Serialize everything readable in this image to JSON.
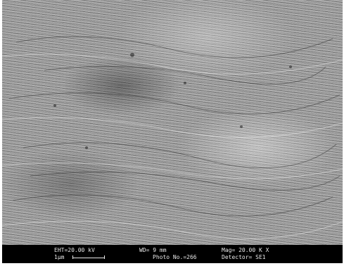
{
  "image": {
    "description_name": "sem-micrograph"
  },
  "databar": {
    "eht": "EHT=20.00 kV",
    "scale_label": "1μm",
    "wd": "WD=   9 mm",
    "photo_no": "Photo No.=266",
    "mag": "Mag= 20.00 K X",
    "detector": "Detector= SE1"
  },
  "colors": {
    "databar_bg": "#000000",
    "databar_text": "#e8e8e8",
    "image_base": "#9a9a9a"
  }
}
